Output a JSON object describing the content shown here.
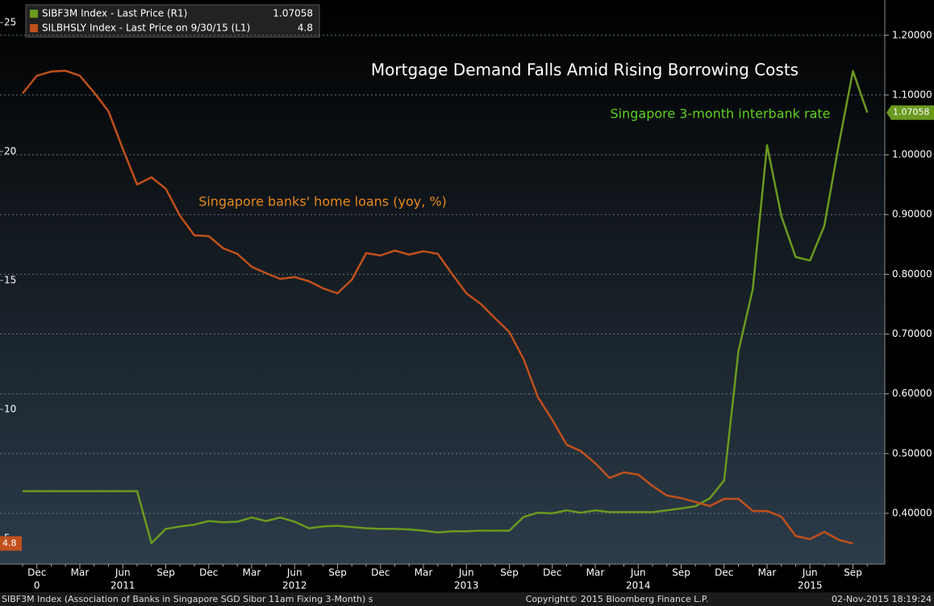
{
  "chart_data": {
    "type": "line",
    "title": "Mortgage Demand Falls Amid Rising Borrowing Costs",
    "annotations": [
      "Singapore 3-month interbank rate",
      "Singapore banks' home loans (yoy, %)"
    ],
    "footer": [
      "SIBF3M Index (Association of Banks in Singapore SGD Sibor 11am Fixing 3-Month) s",
      "Copyright© 2015 Bloomberg Finance L.P.",
      "02-Nov-2015 18:19:24"
    ],
    "categories": [
      null,
      "Dec",
      null,
      null,
      "Mar",
      null,
      null,
      "Jun",
      null,
      null,
      "Sep",
      null,
      null,
      "Dec",
      null,
      null,
      "Mar",
      null,
      null,
      "Jun",
      null,
      null,
      "Sep",
      null,
      null,
      "Dec",
      null,
      null,
      "Mar",
      null,
      null,
      "Jun",
      null,
      null,
      "Sep",
      null,
      null,
      "Dec",
      null,
      null,
      "Mar",
      null,
      null,
      "Jun",
      null,
      null,
      "Sep",
      null,
      null,
      "Dec",
      null,
      null,
      "Mar",
      null,
      null,
      "Jun",
      null,
      null,
      "Sep",
      null
    ],
    "year_labels": [
      null,
      "0",
      null,
      null,
      null,
      null,
      null,
      "2011",
      null,
      null,
      null,
      null,
      null,
      null,
      null,
      null,
      null,
      null,
      null,
      "2012",
      null,
      null,
      null,
      null,
      null,
      null,
      null,
      null,
      null,
      null,
      null,
      "2013",
      null,
      null,
      null,
      null,
      null,
      null,
      null,
      null,
      null,
      null,
      null,
      "2014",
      null,
      null,
      null,
      null,
      null,
      null,
      null,
      null,
      null,
      null,
      null,
      "2015",
      null,
      null,
      null,
      null
    ],
    "series": [
      {
        "name": "SIBF3M Index - Last Price (R1)",
        "color": "#6a9a1f",
        "axis": "y2",
        "values": [
          0.437,
          0.437,
          0.437,
          0.437,
          0.437,
          0.437,
          0.437,
          0.437,
          0.437,
          0.35,
          0.374,
          0.378,
          0.381,
          0.387,
          0.385,
          0.386,
          0.393,
          0.387,
          0.393,
          0.386,
          0.375,
          0.378,
          0.379,
          0.377,
          0.375,
          0.374,
          0.374,
          0.373,
          0.371,
          0.368,
          0.37,
          0.37,
          0.371,
          0.371,
          0.371,
          0.394,
          0.401,
          0.4,
          0.405,
          0.401,
          0.405,
          0.402,
          0.402,
          0.402,
          0.402,
          0.405,
          0.408,
          0.412,
          0.425,
          0.455,
          0.671,
          0.775,
          1.016,
          0.897,
          0.829,
          0.823,
          0.881,
          1.016,
          1.14,
          1.07058
        ]
      },
      {
        "name": "SILBHSLY Index - Last Price on 9/30/15 (L1)",
        "color": "#c0501c",
        "values": [
          22.25,
          22.94,
          23.1,
          23.13,
          22.94,
          22.28,
          21.56,
          20.1,
          18.72,
          19.0,
          18.56,
          17.5,
          16.75,
          16.72,
          16.25,
          16.03,
          15.53,
          15.28,
          15.06,
          15.13,
          14.97,
          14.69,
          14.5,
          15.03,
          16.06,
          15.97,
          16.16,
          16.0,
          16.13,
          16.03,
          15.25,
          14.5,
          14.09,
          13.53,
          13.0,
          11.94,
          10.47,
          9.59,
          8.63,
          8.38,
          7.91,
          7.34,
          7.56,
          7.47,
          7.03,
          6.66,
          6.56,
          6.41,
          6.25,
          6.53,
          6.53,
          6.06,
          6.06,
          5.84,
          5.09,
          4.97,
          5.25,
          4.94,
          4.8,
          null
        ]
      }
    ],
    "ylim": [
      4,
      25.875
    ],
    "yticks": [
      5,
      10,
      15,
      20,
      25
    ],
    "y2lim": [
      0.315,
      1.259
    ],
    "y2ticks": [
      {
        "value": 0.4,
        "label": "0.40000"
      },
      {
        "value": 0.5,
        "label": "0.50000"
      },
      {
        "value": 0.6,
        "label": "0.60000"
      },
      {
        "value": 0.7,
        "label": "0.70000"
      },
      {
        "value": 0.8,
        "label": "0.80000"
      },
      {
        "value": 0.9,
        "label": "0.90000"
      },
      {
        "value": 1.0,
        "label": "1.00000"
      },
      {
        "value": 1.1,
        "label": "1.10000"
      },
      {
        "value": 1.2,
        "label": "1.20000"
      }
    ],
    "grid": true
  }
}
